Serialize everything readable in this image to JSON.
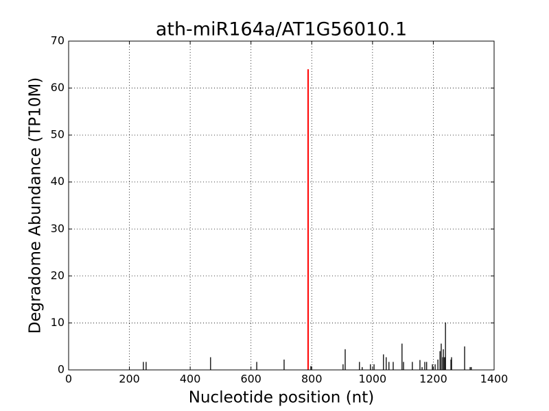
{
  "chart_data": {
    "type": "stem",
    "title": "ath-miR164a/AT1G56010.1",
    "x_label": "Nucleotide position (nt)",
    "y_label": "Degradome Abundance (TP10M)",
    "xlim": [
      0,
      1400
    ],
    "xticks": [
      0,
      200,
      400,
      600,
      800,
      1000,
      1200,
      1400
    ],
    "ylim": [
      0,
      70
    ],
    "yticks": [
      0,
      10,
      20,
      30,
      40,
      50,
      60,
      70
    ],
    "grid": true,
    "series": [
      {
        "color": "#000000",
        "x": [
          246,
          255,
          467,
          619,
          709,
          797,
          903,
          910,
          957,
          966,
          993,
          1005,
          1036,
          1045,
          1054,
          1068,
          1097,
          1102,
          1131,
          1156,
          1163,
          1172,
          1178,
          1197,
          1206,
          1215,
          1222,
          1226,
          1231,
          1233,
          1237,
          1240,
          1258,
          1260,
          1303,
          1321,
          1325
        ],
        "values": [
          1.7,
          1.7,
          2.7,
          1.7,
          2.2,
          0.8,
          1.2,
          4.4,
          1.7,
          0.6,
          1.2,
          1.2,
          3.3,
          2.7,
          1.7,
          1.7,
          5.6,
          1.7,
          1.7,
          2.1,
          0.6,
          1.7,
          1.7,
          1.2,
          1.2,
          2.2,
          4.0,
          5.6,
          2.7,
          4.4,
          2.7,
          10.1,
          2.2,
          2.7,
          5.0,
          0.6,
          0.6
        ]
      },
      {
        "color": "#ff0000",
        "x": [
          788
        ],
        "values": [
          64
        ]
      }
    ]
  }
}
